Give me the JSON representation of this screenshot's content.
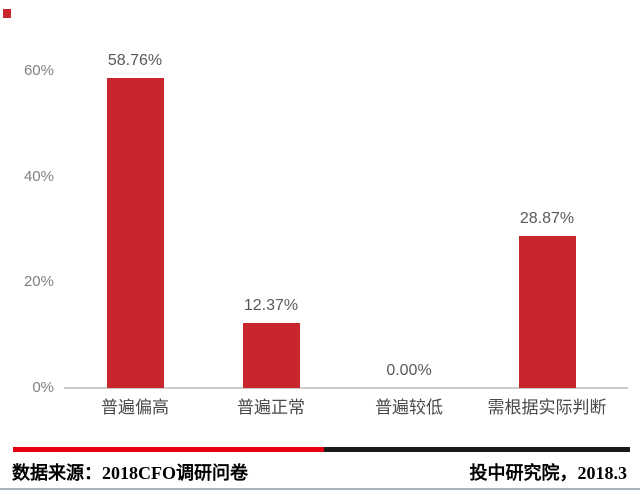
{
  "chart_data": {
    "type": "bar",
    "title": "",
    "xlabel": "",
    "ylabel": "",
    "categories": [
      "普遍偏高",
      "普遍正常",
      "普遍较低",
      "需根据实际判断"
    ],
    "values": [
      58.76,
      12.37,
      0.0,
      28.87
    ],
    "value_labels": [
      "58.76%",
      "12.37%",
      "0.00%",
      "28.87%"
    ],
    "ytick_labels": [
      "0%",
      "20%",
      "40%",
      "60%"
    ],
    "ytick_values": [
      0,
      20,
      40,
      60
    ],
    "ylim": [
      0,
      60
    ],
    "grid": false,
    "legend_position": "top-left",
    "legend_marker": "red-square-no-text",
    "bar_color": "#c9252d"
  },
  "footer": {
    "source_label": "数据来源：2018CFO调研问卷",
    "publisher_label": "投中研究院，2018.3"
  },
  "colors": {
    "bar": "#c9252d",
    "divider_red": "#e60012",
    "divider_black": "#1a1a1a",
    "axis_line": "#cbcbcb",
    "bottom_border": "#a9b3bc",
    "ytick_text": "#808080",
    "value_text": "#595959",
    "category_text": "#4a4a4a",
    "footer_text": "#000000"
  }
}
